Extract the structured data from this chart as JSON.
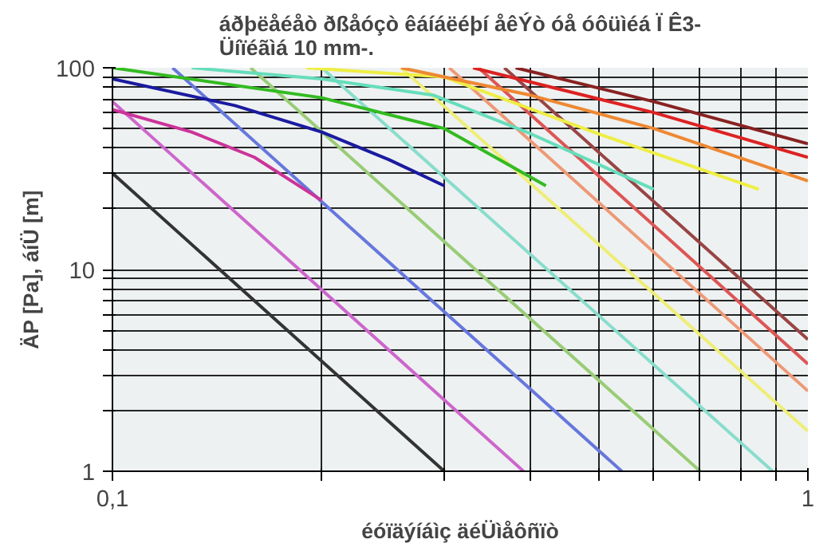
{
  "chart_data": {
    "type": "line",
    "title": "áðþëåéåò ðßåóçò êáíáëéþí åêÝò óå óôüìéá Ï Ê3-\nÜíïéãìá 10 mm-.",
    "xlabel": "éóïäýíáìç äéÜìåôñïò",
    "ylabel": "ÄP [Pa], áíÜ [m]",
    "log": "xy",
    "grid": true,
    "xlim": [
      0.1,
      1
    ],
    "ylim": [
      1,
      100
    ],
    "xticks": [
      {
        "value": 0.1,
        "label": "0,1"
      },
      {
        "value": 0.2,
        "label": null
      },
      {
        "value": 0.3,
        "label": null
      },
      {
        "value": 0.4,
        "label": null
      },
      {
        "value": 0.5,
        "label": null
      },
      {
        "value": 0.6,
        "label": null
      },
      {
        "value": 0.7,
        "label": null
      },
      {
        "value": 0.8,
        "label": null
      },
      {
        "value": 0.9,
        "label": null
      },
      1
    ],
    "yticks": [
      1,
      {
        "value": 2,
        "label": null
      },
      {
        "value": 3,
        "label": null
      },
      {
        "value": 4,
        "label": null
      },
      {
        "value": 5,
        "label": null
      },
      {
        "value": 6,
        "label": null
      },
      {
        "value": 7,
        "label": null
      },
      {
        "value": 8,
        "label": null
      },
      {
        "value": 9,
        "label": null
      },
      10,
      {
        "value": 20,
        "label": null
      },
      {
        "value": 30,
        "label": null
      },
      {
        "value": 40,
        "label": null
      },
      {
        "value": 50,
        "label": null
      },
      {
        "value": 60,
        "label": null
      },
      {
        "value": 70,
        "label": null
      },
      {
        "value": 80,
        "label": null
      },
      {
        "value": 90,
        "label": null
      },
      100
    ],
    "series": [
      {
        "color": "#333333",
        "x": [
          0.1,
          0.3
        ],
        "values": [
          30,
          1
        ]
      },
      {
        "color": "#cc66cc",
        "x": [
          0.1,
          0.39
        ],
        "values": [
          68,
          1
        ]
      },
      {
        "color": "#6677dd",
        "x": [
          0.122,
          0.54
        ],
        "values": [
          100,
          1
        ]
      },
      {
        "color": "#99cc77",
        "x": [
          0.158,
          0.7
        ],
        "values": [
          100,
          1
        ]
      },
      {
        "color": "#88ddcc",
        "x": [
          0.2,
          0.89
        ],
        "values": [
          100,
          1
        ]
      },
      {
        "color": "#eeee77",
        "x": [
          0.26,
          1
        ],
        "values": [
          100,
          1.58
        ]
      },
      {
        "color": "#ee9977",
        "x": [
          0.305,
          1
        ],
        "values": [
          100,
          2.5
        ]
      },
      {
        "color": "#dd5555",
        "x": [
          0.336,
          1
        ],
        "values": [
          100,
          3.4
        ]
      },
      {
        "color": "#994444",
        "x": [
          0.366,
          1
        ],
        "values": [
          100,
          4.5
        ]
      },
      {
        "color": "#cc3399",
        "x": [
          0.1,
          0.13,
          0.16,
          0.2
        ],
        "values": [
          62,
          48,
          36,
          22
        ]
      },
      {
        "color": "#1a1aa0",
        "x": [
          0.1,
          0.15,
          0.2,
          0.25,
          0.3
        ],
        "values": [
          88,
          65,
          48,
          35,
          26
        ]
      },
      {
        "color": "#33bb22",
        "x": [
          0.1,
          0.2,
          0.3,
          0.42
        ],
        "values": [
          100,
          71,
          50,
          26
        ]
      },
      {
        "color": "#66ddbb",
        "x": [
          0.13,
          0.2,
          0.29,
          0.4,
          0.6
        ],
        "values": [
          100,
          88,
          73,
          47,
          25
        ]
      },
      {
        "color": "#eeee44",
        "x": [
          0.19,
          0.3,
          0.5,
          0.85
        ],
        "values": [
          100,
          90,
          47,
          25
        ]
      },
      {
        "color": "#ee8833",
        "x": [
          0.26,
          0.4,
          0.6,
          1
        ],
        "values": [
          100,
          73,
          50,
          27.5
        ]
      },
      {
        "color": "#dd2222",
        "x": [
          0.33,
          0.6,
          1
        ],
        "values": [
          100,
          60,
          36
        ]
      },
      {
        "color": "#882222",
        "x": [
          0.38,
          0.6,
          1
        ],
        "values": [
          100,
          68,
          42
        ]
      }
    ]
  }
}
